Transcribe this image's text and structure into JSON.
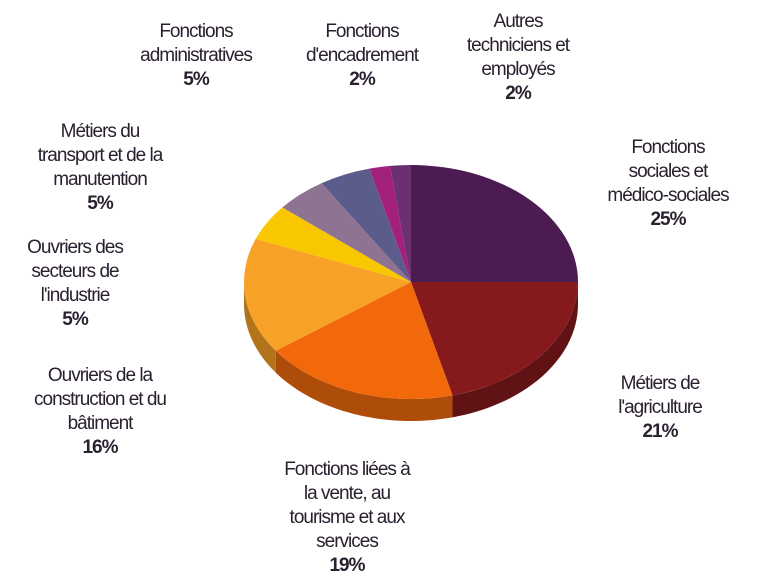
{
  "chart_data": {
    "type": "pie",
    "categories": [
      [
        "Fonctions",
        "sociales et",
        "médico-sociales"
      ],
      [
        "Métiers de",
        "l'agriculture"
      ],
      [
        "Fonctions liées à",
        "la vente, au",
        "tourisme et aux",
        "services"
      ],
      [
        "Ouvriers de la",
        "construction et du",
        "bâtiment"
      ],
      [
        "Ouvriers des",
        "secteurs de",
        "l'industrie"
      ],
      [
        "Métiers du",
        "transport et de la",
        "manutention"
      ],
      [
        "Fonctions",
        "administratives"
      ],
      [
        "Fonctions",
        "d'encadrement"
      ],
      [
        "Autres",
        "techniciens et",
        "employés"
      ]
    ],
    "values": [
      25,
      21,
      19,
      16,
      5,
      5,
      5,
      2,
      2
    ],
    "value_labels": [
      "25%",
      "21%",
      "19%",
      "16%",
      "5%",
      "5%",
      "5%",
      "2%",
      "2%"
    ],
    "colors": [
      "#4b1b52",
      "#86191c",
      "#f2690c",
      "#f7a126",
      "#f8c700",
      "#8e7393",
      "#5c5c8c",
      "#a3217d",
      "#6b2f72"
    ]
  }
}
